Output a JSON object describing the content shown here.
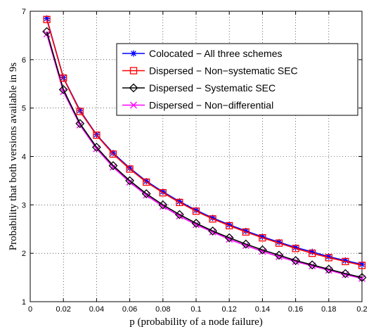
{
  "chart_data": {
    "type": "line",
    "xlabel": "p (probability of a node failure)",
    "ylabel": "Probability that both versions available in 9s",
    "xlim": [
      0,
      0.2
    ],
    "ylim": [
      1,
      7
    ],
    "xticks": [
      0,
      0.02,
      0.04,
      0.06,
      0.08,
      0.1,
      0.12,
      0.14,
      0.16,
      0.18,
      0.2
    ],
    "xtick_labels": [
      "0",
      "0.02",
      "0.04",
      "0.06",
      "0.08",
      "0.1",
      "0.12",
      "0.14",
      "0.16",
      "0.18",
      "0.2"
    ],
    "yticks": [
      1,
      2,
      3,
      4,
      5,
      6,
      7
    ],
    "ytick_labels": [
      "1",
      "2",
      "3",
      "4",
      "5",
      "6",
      "7"
    ],
    "grid": true,
    "legend_position": "top-right",
    "x": [
      0.01,
      0.02,
      0.03,
      0.04,
      0.05,
      0.06,
      0.07,
      0.08,
      0.09,
      0.1,
      0.11,
      0.12,
      0.13,
      0.14,
      0.15,
      0.16,
      0.17,
      0.18,
      0.19,
      0.2
    ],
    "series": [
      {
        "name": "Colocated − All three schemes",
        "color": "#0000ff",
        "marker": "asterisk",
        "values": [
          6.85,
          5.63,
          4.95,
          4.45,
          4.07,
          3.76,
          3.49,
          3.27,
          3.07,
          2.89,
          2.73,
          2.59,
          2.46,
          2.34,
          2.23,
          2.12,
          2.03,
          1.93,
          1.85,
          1.77
        ]
      },
      {
        "name": "Dispersed − Non−systematic SEC",
        "color": "#ff0000",
        "marker": "square",
        "values": [
          6.83,
          5.62,
          4.93,
          4.44,
          4.05,
          3.74,
          3.47,
          3.25,
          3.05,
          2.87,
          2.71,
          2.57,
          2.44,
          2.32,
          2.21,
          2.1,
          2.0,
          1.91,
          1.83,
          1.75
        ]
      },
      {
        "name": "Dispersed − Systematic SEC",
        "color": "#000000",
        "marker": "diamond",
        "values": [
          6.58,
          5.38,
          4.68,
          4.19,
          3.81,
          3.5,
          3.23,
          3.0,
          2.8,
          2.62,
          2.46,
          2.32,
          2.19,
          2.07,
          1.96,
          1.85,
          1.76,
          1.67,
          1.58,
          1.5
        ]
      },
      {
        "name": "Dispersed − Non−differential",
        "color": "#ff00ff",
        "marker": "x",
        "values": [
          6.53,
          5.34,
          4.65,
          4.16,
          3.78,
          3.47,
          3.2,
          2.97,
          2.77,
          2.59,
          2.44,
          2.29,
          2.16,
          2.04,
          1.93,
          1.83,
          1.74,
          1.65,
          1.56,
          1.48
        ]
      }
    ]
  }
}
